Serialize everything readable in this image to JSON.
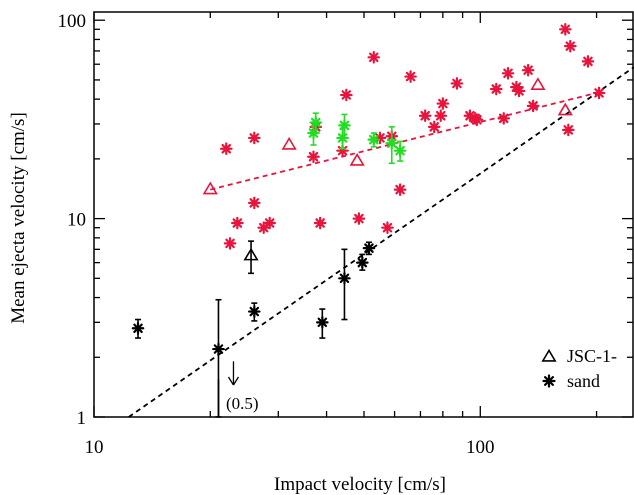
{
  "chart_data": {
    "type": "scatter",
    "xlabel": "Impact velocity [cm/s]",
    "ylabel": "Mean ejecta velocity [cm/s]",
    "xscale": "log",
    "yscale": "log",
    "xlim": [
      10,
      250
    ],
    "ylim": [
      1,
      110
    ],
    "x_ticks": [
      10,
      100
    ],
    "y_ticks": [
      1,
      10,
      100
    ],
    "legend_position": "bottom-right",
    "legend": [
      {
        "symbol": "triangle",
        "label": "JSC-1-"
      },
      {
        "symbol": "asterisk",
        "label": "sand"
      }
    ],
    "annotation": {
      "text": "(0.5)",
      "x": 21,
      "y": 1.2
    },
    "colors": {
      "red": "#e8143c",
      "green": "#22dd22",
      "black": "#000000"
    },
    "series": [
      {
        "marker": "asterisk",
        "color": "red",
        "points": [
          [
            22,
            22.5
          ],
          [
            22.5,
            7.5
          ],
          [
            23.5,
            9.5
          ],
          [
            26,
            12
          ],
          [
            26,
            25.5
          ],
          [
            27.5,
            9
          ],
          [
            28.5,
            9.5
          ],
          [
            37,
            20.5
          ],
          [
            37.5,
            29
          ],
          [
            38.5,
            9.5
          ],
          [
            44,
            22
          ],
          [
            45,
            42
          ],
          [
            48.5,
            10
          ],
          [
            53,
            65
          ],
          [
            55,
            25.5
          ],
          [
            57.5,
            9
          ],
          [
            59,
            26
          ],
          [
            62,
            14
          ],
          [
            66,
            52
          ],
          [
            72,
            33
          ],
          [
            76,
            29
          ],
          [
            79,
            33
          ],
          [
            80,
            38
          ],
          [
            87,
            48
          ],
          [
            94,
            33
          ],
          [
            97,
            32
          ],
          [
            98,
            31.5
          ],
          [
            110,
            45
          ],
          [
            115,
            32
          ],
          [
            118,
            54
          ],
          [
            124,
            46
          ],
          [
            126,
            44
          ],
          [
            133,
            56
          ],
          [
            137,
            37
          ],
          [
            166,
            90
          ],
          [
            169,
            28
          ],
          [
            171,
            74
          ],
          [
            190,
            62
          ],
          [
            203,
            43
          ]
        ]
      },
      {
        "marker": "triangle",
        "color": "red",
        "points": [
          [
            20,
            14
          ],
          [
            32,
            23.5
          ],
          [
            48,
            19.5
          ],
          [
            141,
            47
          ],
          [
            166,
            35
          ]
        ]
      },
      {
        "marker": "asterisk",
        "color": "green",
        "points": [
          [
            37,
            27
          ],
          [
            37.5,
            30.5
          ],
          [
            44,
            25.5
          ],
          [
            44.5,
            29.5
          ],
          [
            53,
            25
          ],
          [
            59,
            24
          ],
          [
            62,
            22
          ]
        ],
        "errors": [
          3.5,
          3.5,
          3,
          4,
          2,
          5,
          2.5
        ]
      },
      {
        "marker": "triangle",
        "color": "black",
        "points": [
          [
            25.5,
            6.5
          ]
        ],
        "errors": [
          1.2
        ]
      },
      {
        "marker": "asterisk",
        "color": "black",
        "points": [
          [
            13,
            2.8
          ],
          [
            21,
            2.2
          ],
          [
            26,
            3.4
          ],
          [
            39,
            3.0
          ],
          [
            44.5,
            5
          ],
          [
            49.5,
            6
          ],
          [
            51.5,
            7.1
          ]
        ],
        "errors_low": [
          0.3,
          1.2,
          0.35,
          0.5,
          1.9,
          0.5,
          0.5
        ],
        "errors_high": [
          0.3,
          1.7,
          0.35,
          0.5,
          2.0,
          0.6,
          0.5
        ]
      }
    ],
    "fit_lines": [
      {
        "color": "red",
        "style": "dashed",
        "x": [
          20,
          200
        ],
        "y": [
          14,
          43
        ]
      },
      {
        "color": "black",
        "style": "dashed",
        "x": [
          12.3,
          250
        ],
        "y": [
          1,
          58
        ]
      }
    ]
  }
}
